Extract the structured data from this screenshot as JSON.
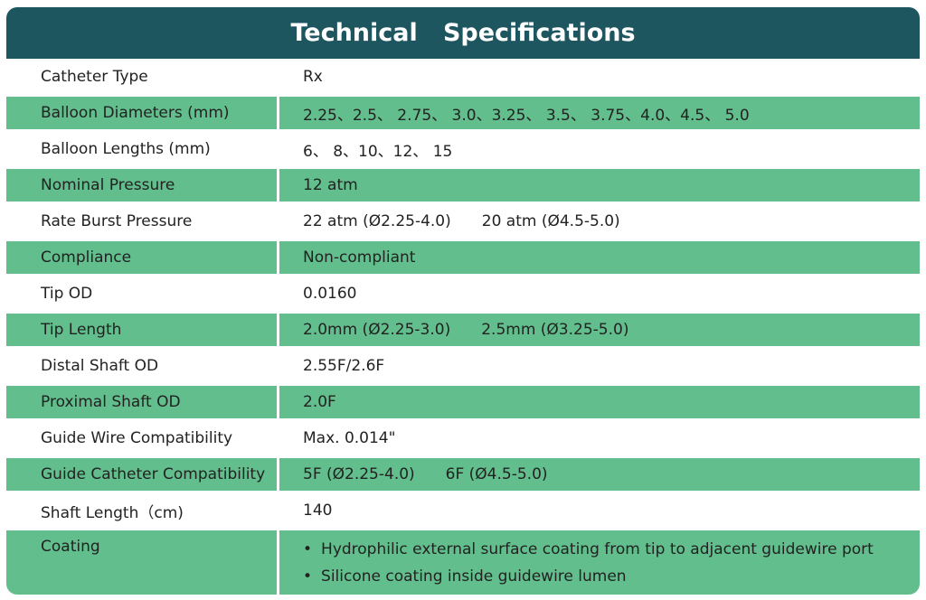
{
  "header": {
    "title": "Technical   Specifications"
  },
  "table": {
    "rows": [
      {
        "label": "Catheter Type",
        "value": [
          "Rx"
        ]
      },
      {
        "label": "Balloon Diameters (mm)",
        "value": [
          "2.25、2.5、 2.75、 3.0、3.25、 3.5、 3.75、4.0、4.5、 5.0"
        ]
      },
      {
        "label": "Balloon Lengths (mm)",
        "value": [
          "6、 8、10、12、 15"
        ]
      },
      {
        "label": "Nominal Pressure",
        "value": [
          "12 atm"
        ]
      },
      {
        "label": "Rate Burst Pressure",
        "value": [
          "22 atm (Ø2.25-4.0)",
          "20 atm (Ø4.5-5.0)"
        ]
      },
      {
        "label": "Compliance",
        "value": [
          "Non-compliant"
        ]
      },
      {
        "label": "Tip OD",
        "value": [
          "0.0160"
        ]
      },
      {
        "label": "Tip Length",
        "value": [
          "2.0mm (Ø2.25-3.0)",
          "2.5mm (Ø3.25-5.0)"
        ]
      },
      {
        "label": "Distal Shaft OD",
        "value": [
          "2.55F/2.6F"
        ]
      },
      {
        "label": "Proximal Shaft OD",
        "value": [
          "2.0F"
        ]
      },
      {
        "label": "Guide Wire Compatibility",
        "value": [
          "Max. 0.014\""
        ]
      },
      {
        "label": "Guide Catheter Compatibility",
        "value": [
          "5F (Ø2.25-4.0)",
          "6F (Ø4.5-5.0)"
        ]
      },
      {
        "label": "Shaft Length（cm)",
        "value": [
          "140"
        ]
      }
    ],
    "coating": {
      "label": "Coating",
      "bullets": [
        "Hydrophilic external surface coating from tip to adjacent guidewire port",
        "Silicone coating inside guidewire lumen"
      ]
    }
  }
}
